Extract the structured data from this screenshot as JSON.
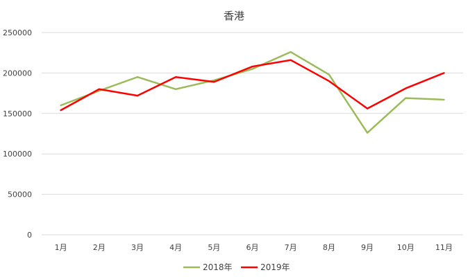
{
  "chart_data": {
    "type": "line",
    "title": "香港",
    "xlabel": "",
    "ylabel": "",
    "categories": [
      "1月",
      "2月",
      "3月",
      "4月",
      "5月",
      "6月",
      "7月",
      "8月",
      "9月",
      "10月",
      "11月"
    ],
    "ylim": [
      0,
      250000
    ],
    "yticks": [
      0,
      50000,
      100000,
      150000,
      200000,
      250000
    ],
    "ytick_labels": [
      "0",
      "50000",
      "100000",
      "150000",
      "200000",
      "250000"
    ],
    "grid": true,
    "legend_position": "bottom",
    "series": [
      {
        "name": "2018年",
        "color": "#9bbb59",
        "values": [
          160000,
          178000,
          195000,
          180000,
          191000,
          205000,
          226000,
          198000,
          126000,
          169000,
          167000
        ]
      },
      {
        "name": "2019年",
        "color": "#ff0000",
        "values": [
          154000,
          180000,
          172000,
          195000,
          189000,
          208000,
          216000,
          190000,
          156000,
          181000,
          200000
        ]
      }
    ]
  }
}
